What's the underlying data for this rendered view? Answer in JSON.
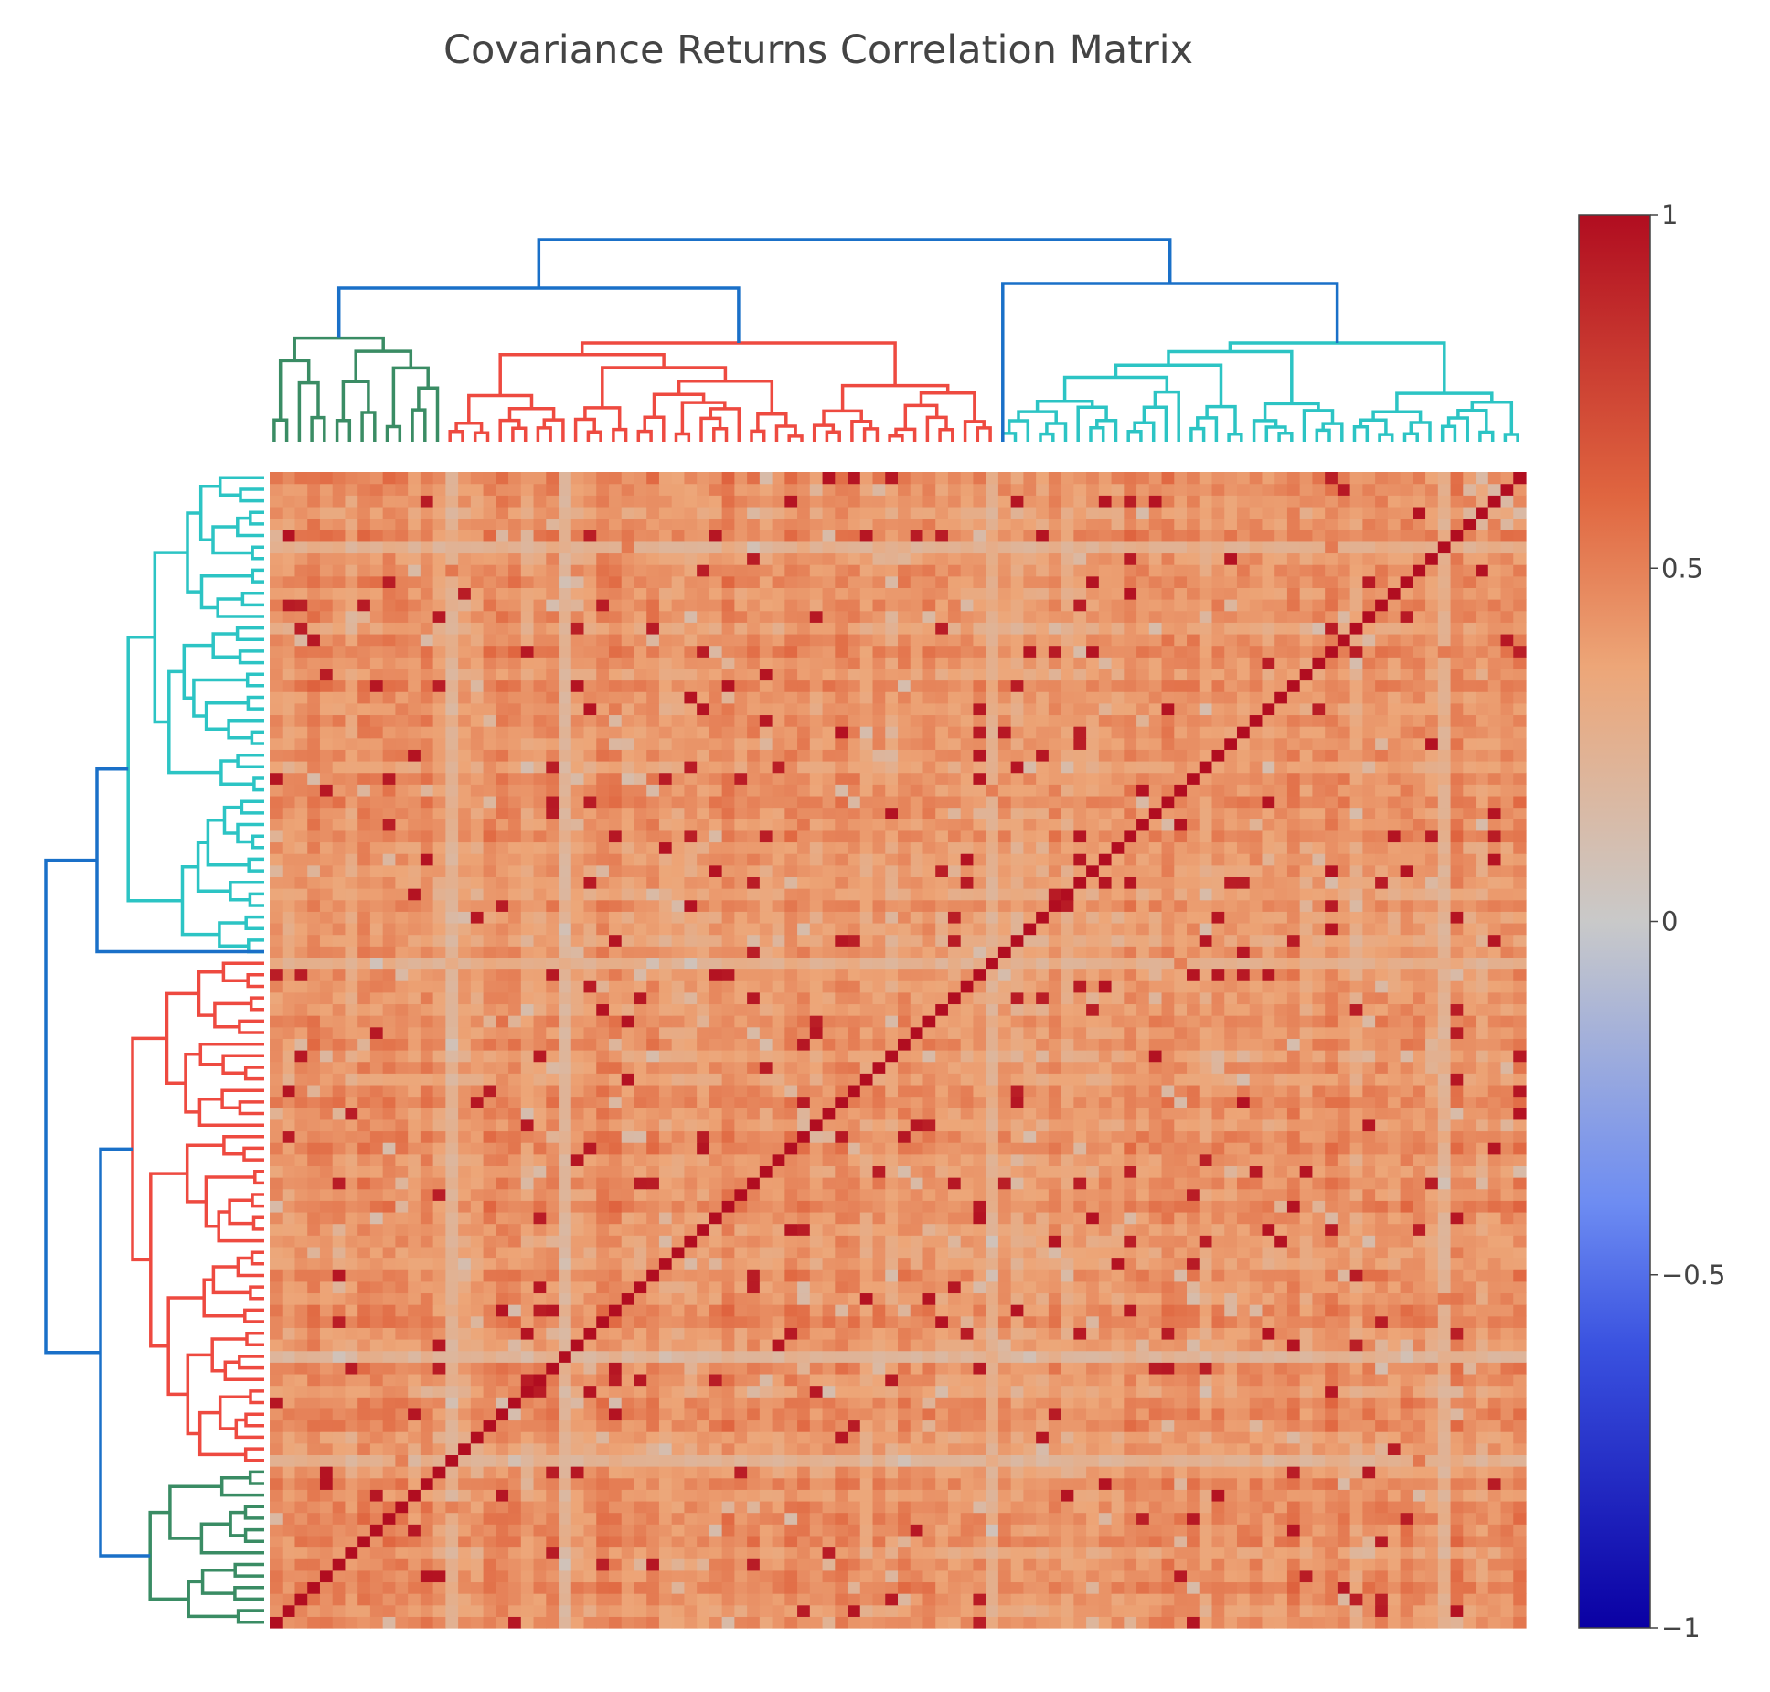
{
  "chart_data": {
    "type": "heatmap",
    "title": "Covariance Returns Correlation Matrix",
    "xlabel": "",
    "ylabel": "",
    "n_assets": 100,
    "value_range": [
      -1,
      1
    ],
    "diagonal_value": 1,
    "typical_offdiagonal_range": [
      0.1,
      0.75
    ],
    "colorscale": [
      [
        0.0,
        "#0a00a3"
      ],
      [
        0.2,
        "#3a52e0"
      ],
      [
        0.3,
        "#6d8cf2"
      ],
      [
        0.5,
        "#c9c9c9"
      ],
      [
        0.68,
        "#eda678"
      ],
      [
        0.8,
        "#e06640"
      ],
      [
        1.0,
        "#b10d20"
      ]
    ],
    "colorbar": {
      "ticks": [
        1,
        0.5,
        0,
        -0.5,
        -1
      ],
      "tick_labels": [
        "1",
        "0.5",
        "0",
        "−0.5",
        "−1"
      ],
      "placement": "right"
    },
    "clusters": [
      {
        "color": "#3a8c64",
        "size": 14
      },
      {
        "color": "#ee4a40",
        "size": 44
      },
      {
        "color": "#2cc4c4",
        "size": 42
      }
    ],
    "link_color": "#1a70c8",
    "dendrograms": [
      "top",
      "left"
    ],
    "grid": false
  }
}
